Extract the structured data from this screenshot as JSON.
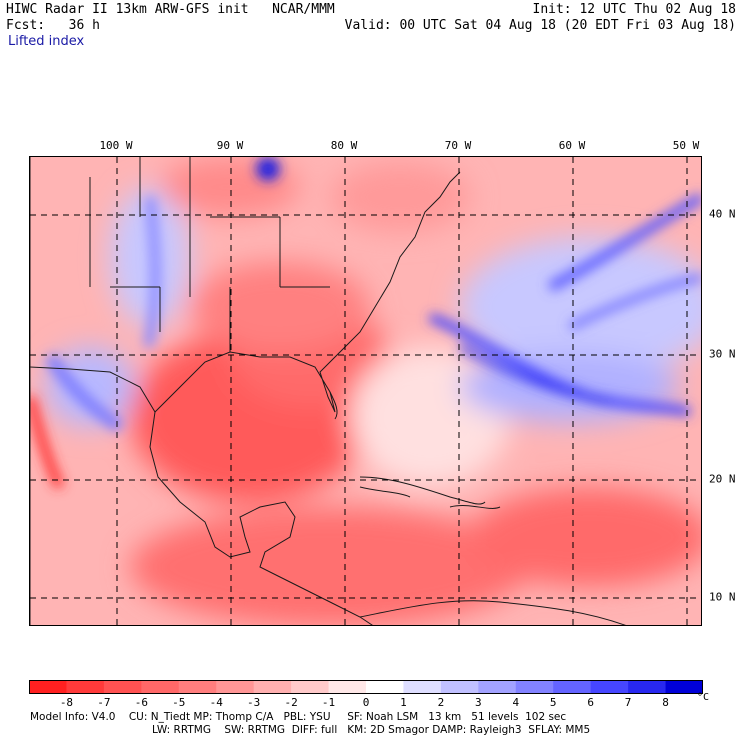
{
  "header": {
    "line1_left": "HIWC Radar II 13km ARW-GFS init   NCAR/MMM",
    "line2_left": "Fcst:   36 h",
    "variable": "Lifted index",
    "line1_right": "Init: 12 UTC Thu 02 Aug 18",
    "line2_right": "Valid: 00 UTC Sat 04 Aug 18 (20 EDT Fri 03 Aug 18)"
  },
  "map": {
    "longitude_labels": [
      "100 W",
      "90 W",
      "80 W",
      "70 W",
      "60 W",
      "50 W"
    ],
    "latitude_labels": [
      "40 N",
      "30 N",
      "20 N",
      "10 N"
    ],
    "colors": {
      "grid": "#000000",
      "coast": "#1a1a1a"
    }
  },
  "colorbar": {
    "ticks": [
      "-8",
      "-7",
      "-6",
      "-5",
      "-4",
      "-3",
      "-2",
      "-1",
      "0",
      "1",
      "2",
      "3",
      "4",
      "5",
      "6",
      "7",
      "8"
    ],
    "unit": "°C",
    "colors": [
      "#ff2020",
      "#ff3a3a",
      "#ff5252",
      "#ff6868",
      "#ff7e7e",
      "#ff9696",
      "#ffb0b0",
      "#ffcaca",
      "#ffe8e8",
      "#ffffff",
      "#dedeff",
      "#c0c0ff",
      "#a2a2ff",
      "#8282ff",
      "#6464ff",
      "#4646ff",
      "#2828f0",
      "#0000d8"
    ]
  },
  "footer": {
    "line1": "Model Info: V4.0    CU: N_Tiedt MP: Thomp C/A   PBL: YSU     SF: Noah LSM   13 km   51 levels  102 sec",
    "line2": "LW: RRTMG    SW: RRTMG  DIFF: full   KM: 2D Smagor DAMP: Rayleigh3  SFLAY: MM5"
  }
}
